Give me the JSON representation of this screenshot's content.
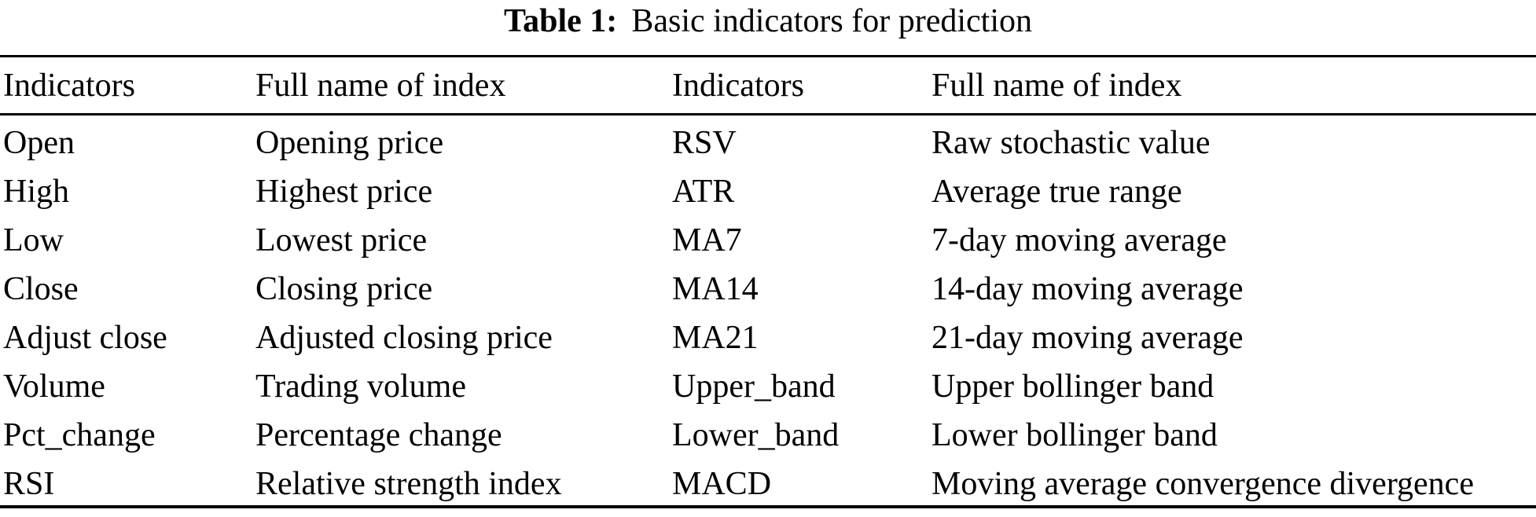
{
  "caption": {
    "label": "Table 1:",
    "text": "Basic indicators for prediction"
  },
  "table": {
    "headers": [
      "Indicators",
      "Full name of index",
      "Indicators",
      "Full name of index"
    ],
    "rows": [
      [
        "Open",
        "Opening price",
        "RSV",
        "Raw stochastic value"
      ],
      [
        "High",
        "Highest price",
        "ATR",
        "Average true range"
      ],
      [
        "Low",
        "Lowest price",
        "MA7",
        "7-day moving average"
      ],
      [
        "Close",
        "Closing price",
        "MA14",
        "14-day moving average"
      ],
      [
        "Adjust close",
        "Adjusted closing price",
        "MA21",
        "21-day moving average"
      ],
      [
        "Volume",
        "Trading volume",
        "Upper_band",
        "Upper bollinger band"
      ],
      [
        "Pct_change",
        "Percentage change",
        "Lower_band",
        "Lower bollinger band"
      ],
      [
        "RSI",
        "Relative strength index",
        "MACD",
        "Moving average convergence divergence"
      ]
    ]
  },
  "colors": {
    "text": "#000000",
    "background": "#ffffff",
    "rule": "#000000"
  }
}
